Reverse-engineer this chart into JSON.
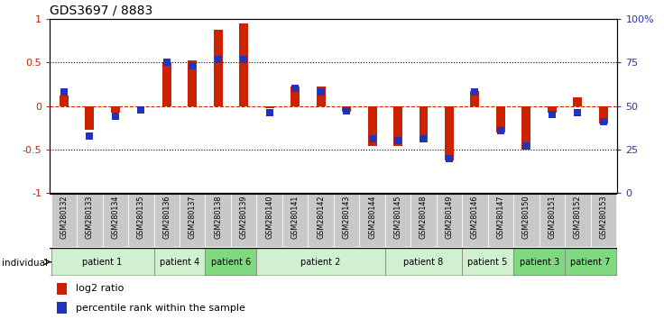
{
  "title": "GDS3697 / 8883",
  "samples": [
    "GSM280132",
    "GSM280133",
    "GSM280134",
    "GSM280135",
    "GSM280136",
    "GSM280137",
    "GSM280138",
    "GSM280139",
    "GSM280140",
    "GSM280141",
    "GSM280142",
    "GSM280143",
    "GSM280144",
    "GSM280145",
    "GSM280148",
    "GSM280149",
    "GSM280146",
    "GSM280147",
    "GSM280150",
    "GSM280151",
    "GSM280152",
    "GSM280153"
  ],
  "log2_ratio": [
    0.12,
    -0.27,
    -0.08,
    0.0,
    0.5,
    0.53,
    0.88,
    0.95,
    -0.02,
    0.22,
    0.22,
    -0.07,
    -0.46,
    -0.46,
    -0.42,
    -0.63,
    0.17,
    -0.3,
    -0.5,
    -0.08,
    0.1,
    -0.2
  ],
  "percentile": [
    58,
    33,
    44,
    48,
    75,
    73,
    77,
    77,
    46,
    60,
    58,
    47,
    31,
    30,
    31,
    20,
    58,
    36,
    27,
    45,
    46,
    41
  ],
  "patients": [
    {
      "label": "patient 1",
      "start": 0,
      "end": 4,
      "color": "#d0f0d0"
    },
    {
      "label": "patient 4",
      "start": 4,
      "end": 6,
      "color": "#d0f0d0"
    },
    {
      "label": "patient 6",
      "start": 6,
      "end": 8,
      "color": "#80d880"
    },
    {
      "label": "patient 2",
      "start": 8,
      "end": 13,
      "color": "#d0f0d0"
    },
    {
      "label": "patient 8",
      "start": 13,
      "end": 16,
      "color": "#d0f0d0"
    },
    {
      "label": "patient 5",
      "start": 16,
      "end": 18,
      "color": "#d0f0d0"
    },
    {
      "label": "patient 3",
      "start": 18,
      "end": 20,
      "color": "#80d880"
    },
    {
      "label": "patient 7",
      "start": 20,
      "end": 22,
      "color": "#80d880"
    }
  ],
  "bar_color_red": "#cc2200",
  "bar_color_blue": "#2233bb",
  "ylim": [
    -1.0,
    1.0
  ],
  "y2lim": [
    0,
    100
  ],
  "yticks_left": [
    -1,
    -0.5,
    0,
    0.5,
    1
  ],
  "yticks_left_labels": [
    "-1",
    "-0.5",
    "0",
    "0.5",
    "1"
  ],
  "yticks_right": [
    0,
    25,
    50,
    75,
    100
  ],
  "yticks_right_labels": [
    "0",
    "25",
    "50",
    "75",
    "100%"
  ],
  "red_bar_width": 0.35,
  "blue_marker_size": 40
}
